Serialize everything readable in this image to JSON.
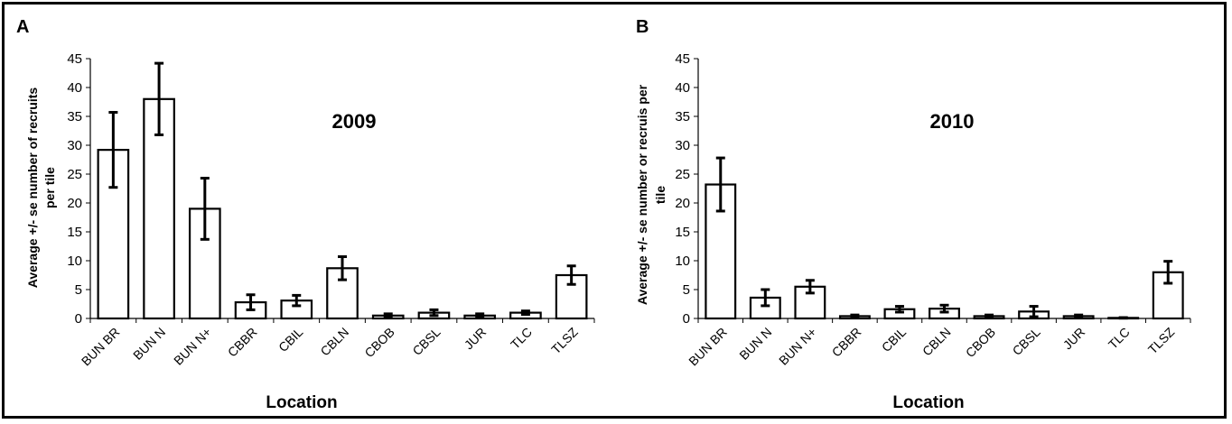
{
  "chart_data": [
    {
      "type": "bar",
      "panel": "A",
      "title": "2009",
      "xlabel": "Location",
      "ylabel": [
        "Average +/- se  number of recruits",
        "per tile"
      ],
      "ylim": [
        0,
        45
      ],
      "yticks": [
        0,
        5,
        10,
        15,
        20,
        25,
        30,
        35,
        40,
        45
      ],
      "grid": false,
      "categories": [
        "BUN BR",
        "BUN N",
        "BUN N+",
        "CBBR",
        "CBIL",
        "CBLN",
        "CBOB",
        "CBSL",
        "JUR",
        "TLC",
        "TLSZ"
      ],
      "values": [
        29.2,
        38.0,
        19.0,
        2.8,
        3.1,
        8.7,
        0.5,
        1.0,
        0.5,
        1.0,
        7.5
      ],
      "errors": [
        6.5,
        6.2,
        5.3,
        1.3,
        0.9,
        2.0,
        0.3,
        0.5,
        0.3,
        0.3,
        1.6
      ]
    },
    {
      "type": "bar",
      "panel": "B",
      "title": "2010",
      "xlabel": "Location",
      "ylabel": [
        "Average +/- se number or recruis per",
        "tile"
      ],
      "ylim": [
        0,
        45
      ],
      "yticks": [
        0,
        5,
        10,
        15,
        20,
        25,
        30,
        35,
        40,
        45
      ],
      "grid": false,
      "categories": [
        "BUN BR",
        "BUN N",
        "BUN N+",
        "CBBR",
        "CBIL",
        "CBLN",
        "CBOB",
        "CBSL",
        "JUR",
        "TLC",
        "TLSZ"
      ],
      "values": [
        23.2,
        3.6,
        5.5,
        0.4,
        1.6,
        1.7,
        0.4,
        1.2,
        0.4,
        0.1,
        8.0
      ],
      "errors": [
        4.6,
        1.4,
        1.1,
        0.2,
        0.5,
        0.6,
        0.2,
        0.9,
        0.2,
        0.05,
        1.9
      ]
    }
  ]
}
